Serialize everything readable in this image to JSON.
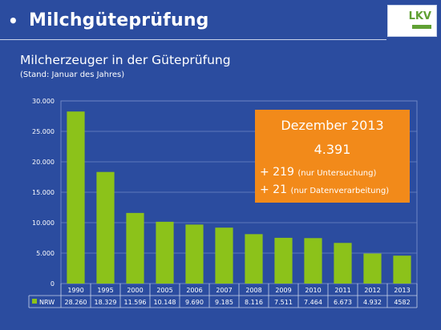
{
  "header": {
    "bullet": "•",
    "title": "Milchgüteprüfung",
    "logo_text": "LKV"
  },
  "chart_header": {
    "title": "Milcherzeuger in der Güteprüfung",
    "subtitle": "(Stand: Januar des Jahres)"
  },
  "callout": {
    "line1": "Dezember 2013",
    "line2": "4.391",
    "line3_main": "+ 219",
    "line3_note": "(nur Untersuchung)",
    "line4_main": "+ 21",
    "line4_note": "(nur Datenverarbeitung)"
  },
  "colors": {
    "background": "#2b4c9f",
    "bar": "#8cc21a",
    "callout": "#f28a1a"
  },
  "chart_data": {
    "type": "bar",
    "categories": [
      "1990",
      "1995",
      "2000",
      "2005",
      "2006",
      "2007",
      "2008",
      "2009",
      "2010",
      "2011",
      "2012",
      "2013"
    ],
    "series": [
      {
        "name": "NRW",
        "values": [
          28260,
          18329,
          11596,
          10148,
          9690,
          9185,
          8116,
          7511,
          7464,
          6673,
          4932,
          4582
        ],
        "labels": [
          "28.260",
          "18.329",
          "11.596",
          "10.148",
          "9.690",
          "9.185",
          "8.116",
          "7.511",
          "7.464",
          "6.673",
          "4.932",
          "4582"
        ]
      }
    ],
    "yticks": [
      "0",
      "5.000",
      "10.000",
      "15.000",
      "20.000",
      "25.000",
      "30.000"
    ],
    "ytick_values": [
      0,
      5000,
      10000,
      15000,
      20000,
      25000,
      30000
    ],
    "ylim": [
      0,
      30000
    ],
    "grid": true,
    "legend": "data-table"
  }
}
